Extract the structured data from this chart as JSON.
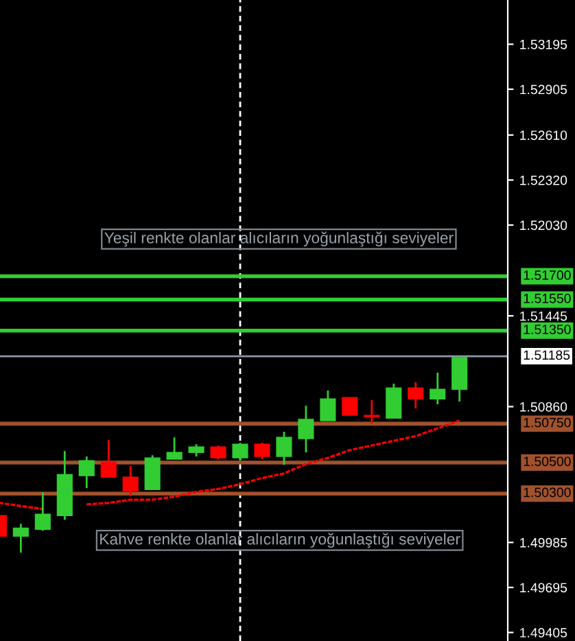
{
  "chart_data": {
    "type": "candlestick",
    "categories": [
      null,
      null,
      null,
      null,
      null,
      null,
      null,
      null,
      null,
      null,
      null,
      null,
      null,
      null,
      null,
      null,
      null,
      null,
      null,
      null,
      null,
      null
    ],
    "ohlc": [
      [
        1.50158,
        1.50165,
        1.50015,
        1.50025
      ],
      [
        1.50025,
        1.50105,
        1.49919,
        1.50078
      ],
      [
        1.50069,
        1.50308,
        1.5006,
        1.50167
      ],
      [
        1.50158,
        1.50574,
        1.50131,
        1.50423
      ],
      [
        1.50415,
        1.50539,
        1.50335,
        1.50512
      ],
      [
        1.50503,
        1.50645,
        1.50406,
        1.50406
      ],
      [
        1.50406,
        1.50477,
        1.50282,
        1.50317
      ],
      [
        1.50326,
        1.50547,
        1.50326,
        1.5053
      ],
      [
        1.50521,
        1.50662,
        1.50521,
        1.50565
      ],
      [
        1.50565,
        1.50618,
        1.50539,
        1.506
      ],
      [
        1.506,
        1.50609,
        1.50521,
        1.5053
      ],
      [
        1.5053,
        1.50627,
        1.50512,
        1.50618
      ],
      [
        1.50618,
        1.50627,
        1.50521,
        1.50539
      ],
      [
        1.50539,
        1.50698,
        1.50485,
        1.50662
      ],
      [
        1.50654,
        1.50866,
        1.50565,
        1.50778
      ],
      [
        1.50769,
        1.50964,
        1.50769,
        1.5091
      ],
      [
        1.50919,
        1.50919,
        1.50804,
        1.50804
      ],
      [
        1.50804,
        1.50902,
        1.50751,
        1.50795
      ],
      [
        1.50786,
        1.51008,
        1.50786,
        1.50981
      ],
      [
        1.50981,
        1.51017,
        1.50848,
        1.5091
      ],
      [
        1.5091,
        1.51079,
        1.50875,
        1.50972
      ],
      [
        1.50972,
        1.51185,
        1.50893,
        1.51176
      ]
    ],
    "colors": [
      "#ff0000",
      "#32cd32",
      "#32cd32",
      "#32cd32",
      "#32cd32",
      "#ff0000",
      "#ff0000",
      "#32cd32",
      "#32cd32",
      "#32cd32",
      "#ff0000",
      "#32cd32",
      "#ff0000",
      "#32cd32",
      "#32cd32",
      "#32cd32",
      "#ff0000",
      "#ff0000",
      "#32cd32",
      "#ff0000",
      "#32cd32",
      "#32cd32"
    ],
    "series": [
      {
        "type": "line",
        "color": "#ff0000",
        "line_style": "dashed",
        "values": [
          1.5024,
          1.5022,
          1.502,
          null,
          1.5023,
          1.5024,
          1.5026,
          1.5026,
          1.5028,
          1.5031,
          1.5033,
          1.5036,
          1.504,
          1.5043,
          1.5049,
          1.5053,
          1.5058,
          1.5061,
          1.5064,
          1.5067,
          1.5072,
          1.5077
        ]
      }
    ],
    "ylim": [
      1.4935,
      1.5348
    ],
    "yticks": [
      1.53195,
      1.52905,
      {
        "value": 1.5261,
        "label": "1.52610"
      },
      {
        "value": 1.5232,
        "label": "1.52320"
      },
      {
        "value": 1.5203,
        "label": "1.52030"
      },
      1.51445,
      {
        "value": 1.5086,
        "label": "1.50860"
      },
      1.49985,
      1.49695,
      1.49405
    ],
    "tick_labels": "y",
    "grid": false,
    "ref_lines": [
      {
        "axis": "y",
        "value": 1.517,
        "label": "1.51700",
        "color": "#32cd32"
      },
      {
        "axis": "y",
        "value": 1.5155,
        "label": "1.51550",
        "color": "#32cd32"
      },
      {
        "axis": "y",
        "value": 1.5135,
        "label": "1.51350",
        "color": "#32cd32"
      },
      {
        "axis": "y",
        "value": 1.51185,
        "label": "1.51185",
        "color": "#8c9aa8"
      },
      {
        "axis": "y",
        "value": 1.5075,
        "label": "1.50750",
        "color": "#a0522d"
      },
      {
        "axis": "y",
        "value": 1.505,
        "label": "1.50500",
        "color": "#a0522d"
      },
      {
        "axis": "y",
        "value": 1.503,
        "label": "1.50300",
        "color": "#a0522d"
      }
    ],
    "annotations": [
      "Yeşil renkte olanlar alıcıların yoğunlaştığı seviyeler",
      "Kahve renkte olanlar alıcıların yoğunlaştığı seviyeler"
    ]
  }
}
